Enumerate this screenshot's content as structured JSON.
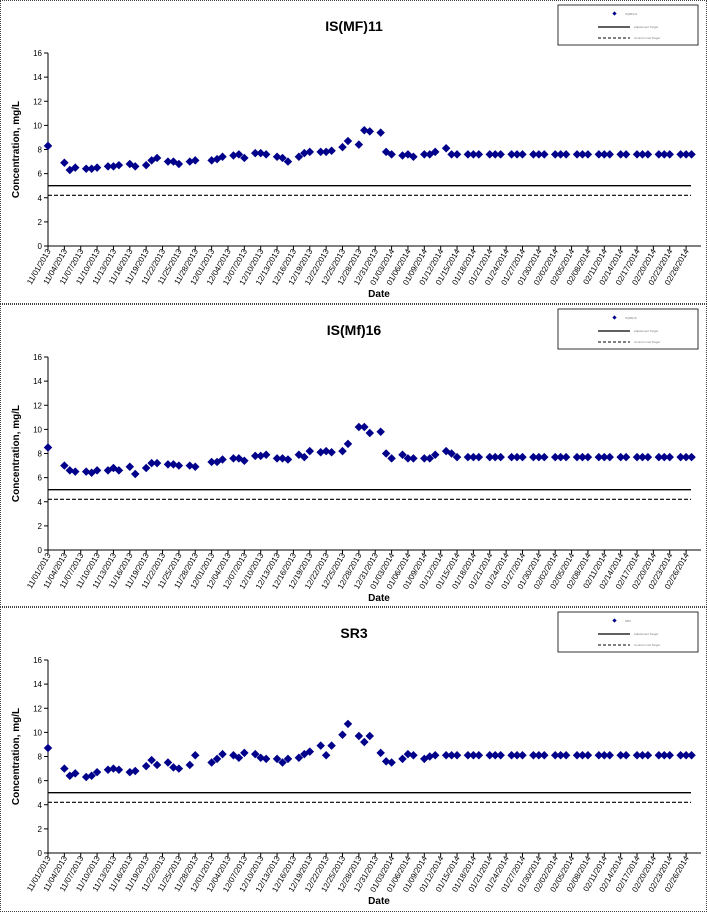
{
  "chart_data": [
    {
      "type": "scatter",
      "title": "IS(MF)11",
      "xlabel": "Date",
      "ylabel": "Concentration, mg/L",
      "ylim": [
        0,
        16
      ],
      "yticks": [
        "0",
        "2",
        "4",
        "6",
        "8",
        "10",
        "12",
        "14",
        "16"
      ],
      "xticks": [
        "11/01/2013",
        "11/04/2013",
        "11/07/2013",
        "11/10/2013",
        "11/13/2013",
        "11/16/2013",
        "11/19/2013",
        "11/22/2013",
        "11/25/2013",
        "11/28/2013",
        "12/01/2013",
        "12/04/2013",
        "12/07/2013",
        "12/10/2013",
        "12/13/2013",
        "12/16/2013",
        "12/19/2013",
        "12/22/2013",
        "12/25/2013",
        "12/28/2013",
        "12/31/2013",
        "01/03/2014",
        "01/06/2014",
        "01/09/2014",
        "01/12/2014",
        "01/15/2014",
        "01/18/2014",
        "01/21/2014",
        "01/24/2014",
        "01/27/2014",
        "01/30/2014",
        "02/02/2014",
        "02/05/2014",
        "02/08/2014",
        "02/11/2014",
        "02/14/2014",
        "02/17/2014",
        "02/20/2014",
        "02/23/2014",
        "02/26/2014"
      ],
      "xlim": [
        "2013-11-01",
        "2014-02-28"
      ],
      "grid": false,
      "legend": {
        "position": "top-right",
        "entries": [
          "IS(MF)11",
          "Adjustment Target",
          "Control Limit Target"
        ]
      },
      "target_line": 5.0,
      "limit_line": 4.2,
      "x": [
        "2013-11-01",
        "2013-11-04",
        "2013-11-05",
        "2013-11-06",
        "2013-11-08",
        "2013-11-09",
        "2013-11-10",
        "2013-11-12",
        "2013-11-13",
        "2013-11-14",
        "2013-11-16",
        "2013-11-17",
        "2013-11-19",
        "2013-11-20",
        "2013-11-21",
        "2013-11-23",
        "2013-11-24",
        "2013-11-25",
        "2013-11-27",
        "2013-11-28",
        "2013-12-01",
        "2013-12-02",
        "2013-12-03",
        "2013-12-05",
        "2013-12-06",
        "2013-12-07",
        "2013-12-09",
        "2013-12-10",
        "2013-12-11",
        "2013-12-13",
        "2013-12-14",
        "2013-12-15",
        "2013-12-17",
        "2013-12-18",
        "2013-12-19",
        "2013-12-21",
        "2013-12-22",
        "2013-12-23",
        "2013-12-25",
        "2013-12-26",
        "2013-12-28",
        "2013-12-29",
        "2013-12-30",
        "2014-01-01",
        "2014-01-02",
        "2014-01-03",
        "2014-01-05",
        "2014-01-06",
        "2014-01-07",
        "2014-01-09",
        "2014-01-10",
        "2014-01-11",
        "2014-01-13",
        "2014-01-14",
        "2014-01-15",
        "2014-01-17",
        "2014-01-18",
        "2014-01-19",
        "2014-01-21",
        "2014-01-22",
        "2014-01-23",
        "2014-01-25",
        "2014-01-26",
        "2014-01-27",
        "2014-01-29",
        "2014-01-30",
        "2014-01-31",
        "2014-02-02",
        "2014-02-03",
        "2014-02-04",
        "2014-02-06",
        "2014-02-07",
        "2014-02-08",
        "2014-02-10",
        "2014-02-11",
        "2014-02-12",
        "2014-02-14",
        "2014-02-15",
        "2014-02-17",
        "2014-02-18",
        "2014-02-19",
        "2014-02-21",
        "2014-02-22",
        "2014-02-23",
        "2014-02-25",
        "2014-02-26",
        "2014-02-27"
      ],
      "series": [
        {
          "values": [
            8.3,
            6.9,
            6.3,
            6.5,
            6.4,
            6.4,
            6.5,
            6.6,
            6.6,
            6.7,
            6.8,
            6.6,
            6.7,
            7.1,
            7.3,
            7.0,
            7.0,
            6.8,
            7.0,
            7.1,
            7.1,
            7.2,
            7.4,
            7.5,
            7.6,
            7.3,
            7.7,
            7.7,
            7.6,
            7.4,
            7.3,
            7.0,
            7.4,
            7.7,
            7.8,
            7.8,
            7.8,
            7.9,
            8.2,
            8.7,
            8.4,
            9.6,
            9.5,
            9.4,
            7.8,
            7.6,
            7.5,
            7.6,
            7.4,
            7.6,
            7.6,
            7.8,
            8.1,
            7.6,
            7.6,
            7.6,
            7.6,
            7.6,
            7.6,
            7.6,
            7.6,
            7.6,
            7.6,
            7.6,
            7.6,
            7.6,
            7.6,
            7.6,
            7.6,
            7.6,
            7.6,
            7.6,
            7.6,
            7.6,
            7.6,
            7.6,
            7.6,
            7.6,
            7.6,
            7.6,
            7.6,
            7.6,
            7.6,
            7.6,
            7.6,
            7.6,
            7.6
          ]
        }
      ]
    },
    {
      "type": "scatter",
      "title": "IS(Mf)16",
      "xlabel": "Date",
      "ylabel": "Concentration, mg/L",
      "ylim": [
        0,
        16
      ],
      "yticks": [
        "0",
        "2",
        "4",
        "6",
        "8",
        "10",
        "12",
        "14",
        "16"
      ],
      "xticks": [
        "11/01/2013",
        "11/04/2013",
        "11/07/2013",
        "11/10/2013",
        "11/13/2013",
        "11/16/2013",
        "11/19/2013",
        "11/22/2013",
        "11/25/2013",
        "11/28/2013",
        "12/01/2013",
        "12/04/2013",
        "12/07/2013",
        "12/10/2013",
        "12/13/2013",
        "12/16/2013",
        "12/19/2013",
        "12/22/2013",
        "12/25/2013",
        "12/28/2013",
        "12/31/2013",
        "01/03/2014",
        "01/06/2014",
        "01/09/2014",
        "01/12/2014",
        "01/15/2014",
        "01/18/2014",
        "01/21/2014",
        "01/24/2014",
        "01/27/2014",
        "01/30/2014",
        "02/02/2014",
        "02/05/2014",
        "02/08/2014",
        "02/11/2014",
        "02/14/2014",
        "02/17/2014",
        "02/20/2014",
        "02/23/2014",
        "02/26/2014"
      ],
      "xlim": [
        "2013-11-01",
        "2014-02-28"
      ],
      "grid": false,
      "legend": {
        "position": "top-right",
        "entries": [
          "IS(Mf)16",
          "Adjustment Target",
          "Control Limit Target"
        ]
      },
      "target_line": 5.0,
      "limit_line": 4.2,
      "x": [
        "2013-11-01",
        "2013-11-04",
        "2013-11-05",
        "2013-11-06",
        "2013-11-08",
        "2013-11-09",
        "2013-11-10",
        "2013-11-12",
        "2013-11-13",
        "2013-11-14",
        "2013-11-16",
        "2013-11-17",
        "2013-11-19",
        "2013-11-20",
        "2013-11-21",
        "2013-11-23",
        "2013-11-24",
        "2013-11-25",
        "2013-11-27",
        "2013-11-28",
        "2013-12-01",
        "2013-12-02",
        "2013-12-03",
        "2013-12-05",
        "2013-12-06",
        "2013-12-07",
        "2013-12-09",
        "2013-12-10",
        "2013-12-11",
        "2013-12-13",
        "2013-12-14",
        "2013-12-15",
        "2013-12-17",
        "2013-12-18",
        "2013-12-19",
        "2013-12-21",
        "2013-12-22",
        "2013-12-23",
        "2013-12-25",
        "2013-12-26",
        "2013-12-28",
        "2013-12-29",
        "2013-12-30",
        "2014-01-01",
        "2014-01-02",
        "2014-01-03",
        "2014-01-05",
        "2014-01-06",
        "2014-01-07",
        "2014-01-09",
        "2014-01-10",
        "2014-01-11",
        "2014-01-13",
        "2014-01-14",
        "2014-01-15",
        "2014-01-17",
        "2014-01-18",
        "2014-01-19",
        "2014-01-21",
        "2014-01-22",
        "2014-01-23",
        "2014-01-25",
        "2014-01-26",
        "2014-01-27",
        "2014-01-29",
        "2014-01-30",
        "2014-01-31",
        "2014-02-02",
        "2014-02-03",
        "2014-02-04",
        "2014-02-06",
        "2014-02-07",
        "2014-02-08",
        "2014-02-10",
        "2014-02-11",
        "2014-02-12",
        "2014-02-14",
        "2014-02-15",
        "2014-02-17",
        "2014-02-18",
        "2014-02-19",
        "2014-02-21",
        "2014-02-22",
        "2014-02-23",
        "2014-02-25",
        "2014-02-26",
        "2014-02-27"
      ],
      "series": [
        {
          "values": [
            8.5,
            7.0,
            6.6,
            6.5,
            6.5,
            6.4,
            6.6,
            6.6,
            6.8,
            6.6,
            6.9,
            6.3,
            6.8,
            7.2,
            7.2,
            7.1,
            7.1,
            7.0,
            7.0,
            6.9,
            7.3,
            7.3,
            7.5,
            7.6,
            7.6,
            7.4,
            7.8,
            7.8,
            7.9,
            7.6,
            7.6,
            7.5,
            7.9,
            7.7,
            8.2,
            8.1,
            8.2,
            8.1,
            8.2,
            8.8,
            10.2,
            10.2,
            9.7,
            9.8,
            8.0,
            7.6,
            7.9,
            7.6,
            7.6,
            7.6,
            7.6,
            7.9,
            8.2,
            8.0,
            7.7,
            7.7,
            7.7,
            7.7,
            7.7,
            7.7,
            7.7,
            7.7,
            7.7,
            7.7,
            7.7,
            7.7,
            7.7,
            7.7,
            7.7,
            7.7,
            7.7,
            7.7,
            7.7,
            7.7,
            7.7,
            7.7,
            7.7,
            7.7,
            7.7,
            7.7,
            7.7,
            7.7,
            7.7,
            7.7,
            7.7,
            7.7,
            7.7
          ]
        }
      ]
    },
    {
      "type": "scatter",
      "title": "SR3",
      "xlabel": "Date",
      "ylabel": "Concentration, mg/L",
      "ylim": [
        0,
        16
      ],
      "yticks": [
        "0",
        "2",
        "4",
        "6",
        "8",
        "10",
        "12",
        "14",
        "16"
      ],
      "xticks": [
        "11/01/2013",
        "11/04/2013",
        "11/07/2013",
        "11/10/2013",
        "11/13/2013",
        "11/16/2013",
        "11/19/2013",
        "11/22/2013",
        "11/25/2013",
        "11/28/2013",
        "12/01/2013",
        "12/04/2013",
        "12/07/2013",
        "12/10/2013",
        "12/13/2013",
        "12/16/2013",
        "12/19/2013",
        "12/22/2013",
        "12/25/2013",
        "12/28/2013",
        "12/31/2013",
        "01/03/2014",
        "01/06/2014",
        "01/09/2014",
        "01/12/2014",
        "01/15/2014",
        "01/18/2014",
        "01/21/2014",
        "01/24/2014",
        "01/27/2014",
        "01/30/2014",
        "02/02/2014",
        "02/05/2014",
        "02/08/2014",
        "02/11/2014",
        "02/14/2014",
        "02/17/2014",
        "02/20/2014",
        "02/23/2014",
        "02/26/2014"
      ],
      "xlim": [
        "2013-11-01",
        "2014-02-28"
      ],
      "grid": false,
      "legend": {
        "position": "top-right",
        "entries": [
          "SR3",
          "Adjustment Target",
          "Control Limit Target"
        ]
      },
      "target_line": 5.0,
      "limit_line": 4.2,
      "x": [
        "2013-11-01",
        "2013-11-04",
        "2013-11-05",
        "2013-11-06",
        "2013-11-08",
        "2013-11-09",
        "2013-11-10",
        "2013-11-12",
        "2013-11-13",
        "2013-11-14",
        "2013-11-16",
        "2013-11-17",
        "2013-11-19",
        "2013-11-20",
        "2013-11-21",
        "2013-11-23",
        "2013-11-24",
        "2013-11-25",
        "2013-11-27",
        "2013-11-28",
        "2013-12-01",
        "2013-12-02",
        "2013-12-03",
        "2013-12-05",
        "2013-12-06",
        "2013-12-07",
        "2013-12-09",
        "2013-12-10",
        "2013-12-11",
        "2013-12-13",
        "2013-12-14",
        "2013-12-15",
        "2013-12-17",
        "2013-12-18",
        "2013-12-19",
        "2013-12-21",
        "2013-12-22",
        "2013-12-23",
        "2013-12-25",
        "2013-12-26",
        "2013-12-28",
        "2013-12-29",
        "2013-12-30",
        "2014-01-01",
        "2014-01-02",
        "2014-01-03",
        "2014-01-05",
        "2014-01-06",
        "2014-01-07",
        "2014-01-09",
        "2014-01-10",
        "2014-01-11",
        "2014-01-13",
        "2014-01-14",
        "2014-01-15",
        "2014-01-17",
        "2014-01-18",
        "2014-01-19",
        "2014-01-21",
        "2014-01-22",
        "2014-01-23",
        "2014-01-25",
        "2014-01-26",
        "2014-01-27",
        "2014-01-29",
        "2014-01-30",
        "2014-01-31",
        "2014-02-02",
        "2014-02-03",
        "2014-02-04",
        "2014-02-06",
        "2014-02-07",
        "2014-02-08",
        "2014-02-10",
        "2014-02-11",
        "2014-02-12",
        "2014-02-14",
        "2014-02-15",
        "2014-02-17",
        "2014-02-18",
        "2014-02-19",
        "2014-02-21",
        "2014-02-22",
        "2014-02-23",
        "2014-02-25",
        "2014-02-26",
        "2014-02-27"
      ],
      "series": [
        {
          "values": [
            8.7,
            7.0,
            6.4,
            6.6,
            6.3,
            6.4,
            6.7,
            6.9,
            7.0,
            6.9,
            6.7,
            6.8,
            7.2,
            7.7,
            7.3,
            7.5,
            7.1,
            7.0,
            7.3,
            8.1,
            7.5,
            7.8,
            8.2,
            8.1,
            7.9,
            8.3,
            8.2,
            7.9,
            7.8,
            7.8,
            7.5,
            7.8,
            7.9,
            8.2,
            8.4,
            8.9,
            8.1,
            8.9,
            9.8,
            10.7,
            9.7,
            9.2,
            9.7,
            8.3,
            7.6,
            7.5,
            7.8,
            8.2,
            8.1,
            7.8,
            8.0,
            8.1,
            8.1,
            8.1,
            8.1,
            8.1,
            8.1,
            8.1,
            8.1,
            8.1,
            8.1,
            8.1,
            8.1,
            8.1,
            8.1,
            8.1,
            8.1,
            8.1,
            8.1,
            8.1,
            8.1,
            8.1,
            8.1,
            8.1,
            8.1,
            8.1,
            8.1,
            8.1,
            8.1,
            8.1,
            8.1,
            8.1,
            8.1,
            8.1,
            8.1,
            8.1,
            8.1
          ]
        }
      ]
    }
  ],
  "colors": {
    "marker": "#00008b",
    "line": "#000000",
    "border": "#444444"
  }
}
